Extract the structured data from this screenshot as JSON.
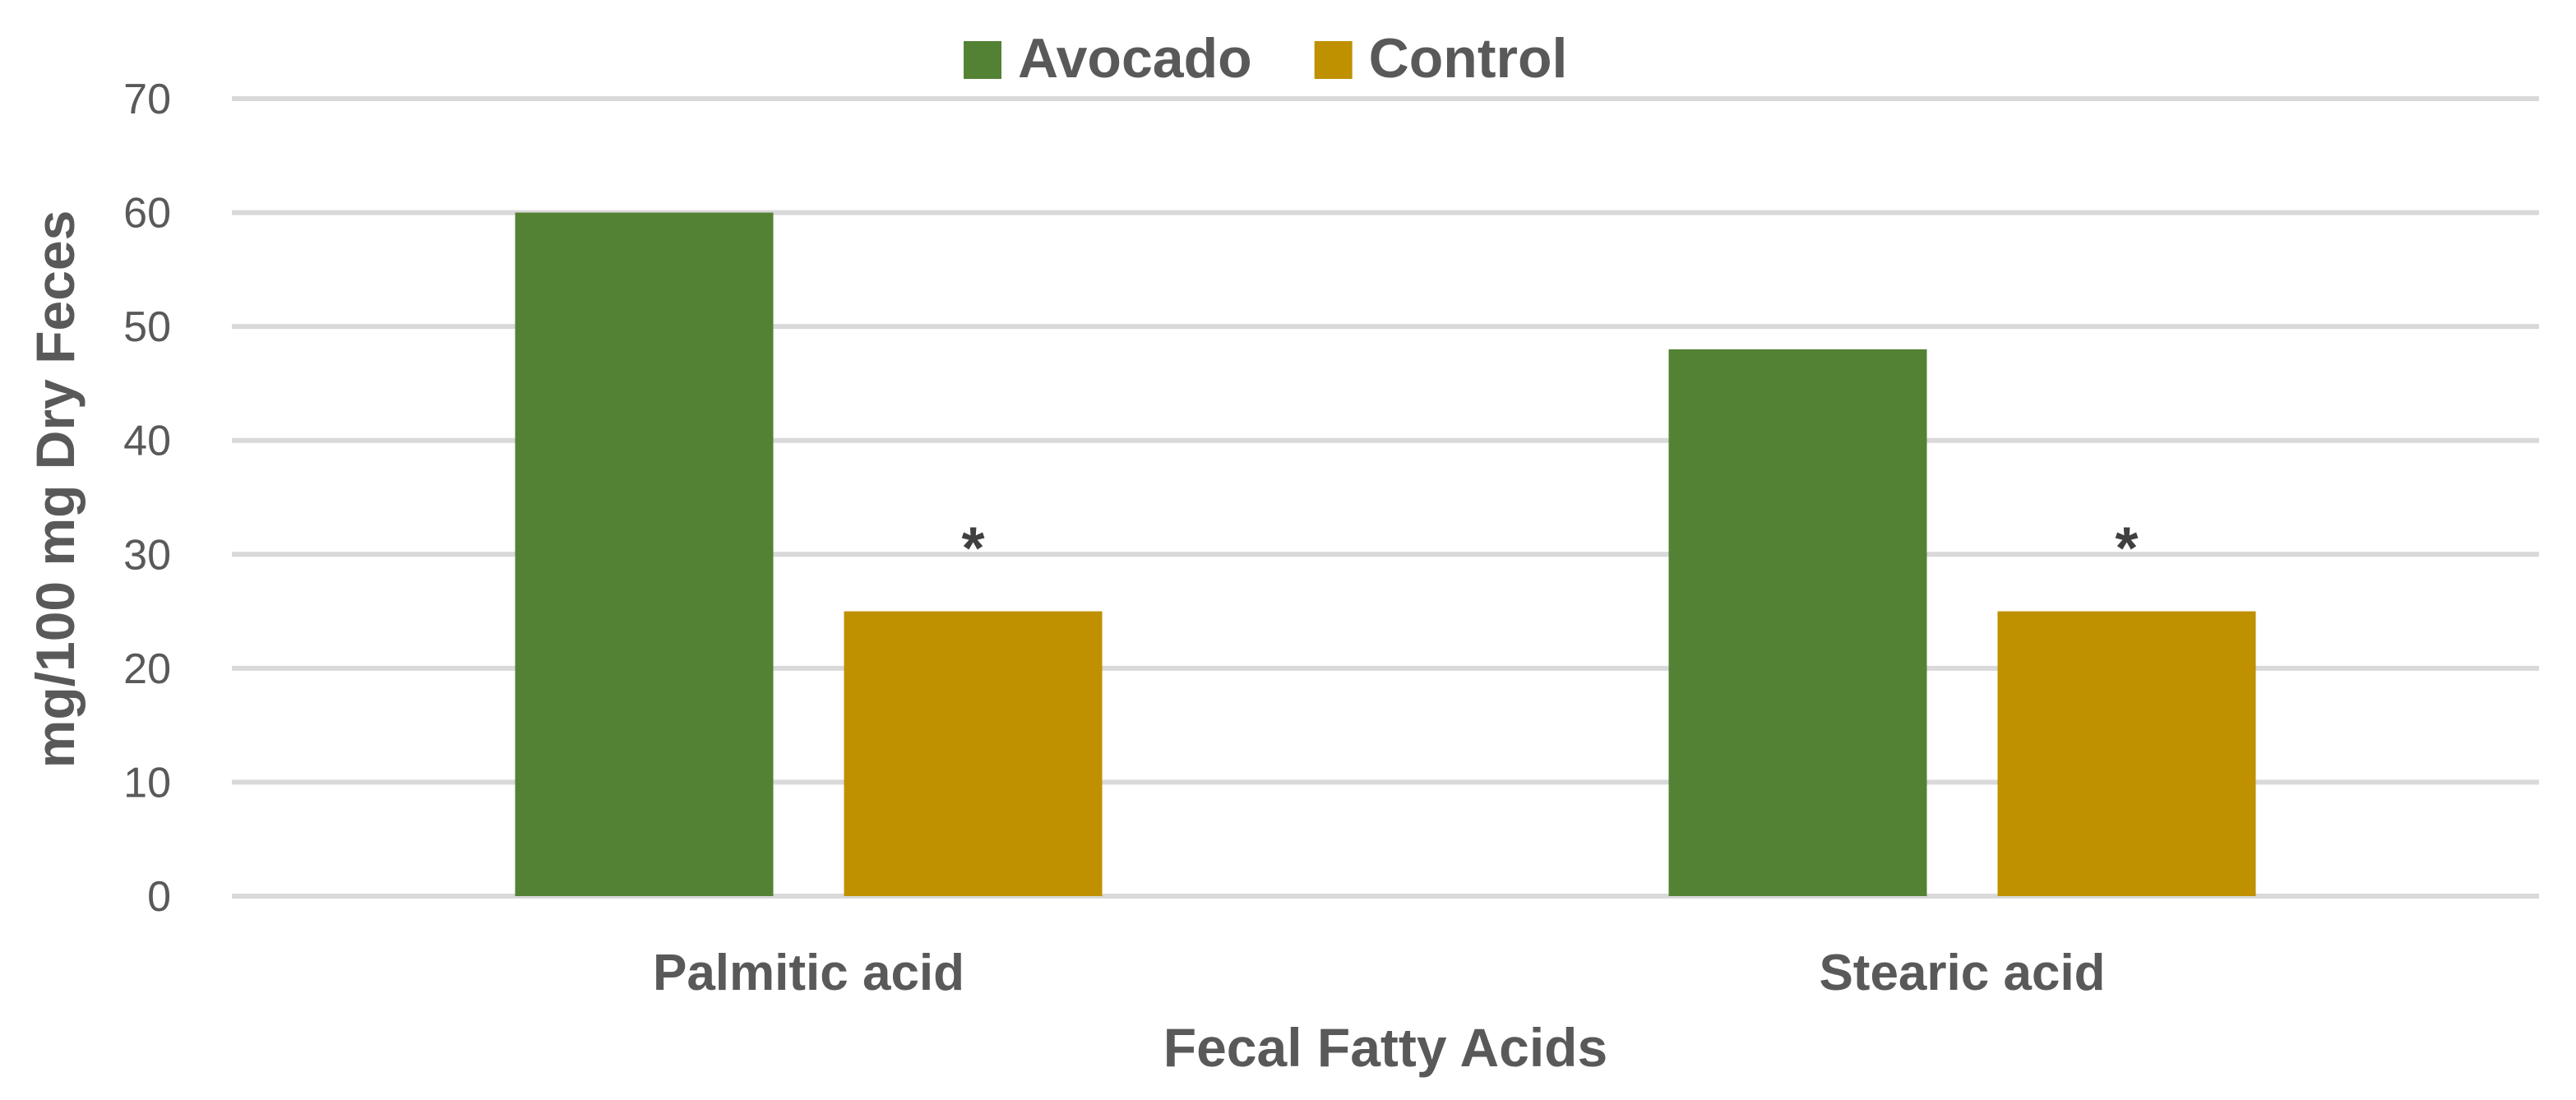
{
  "chart_data": {
    "type": "bar",
    "title": "",
    "xlabel": "Fecal Fatty Acids",
    "ylabel": "mg/100 mg Dry Feces",
    "categories": [
      "Palmitic acid",
      "Stearic acid"
    ],
    "series": [
      {
        "name": "Avocado",
        "color": "#548235",
        "values": [
          60,
          48
        ]
      },
      {
        "name": "Control",
        "color": "#BF9000",
        "values": [
          25,
          25
        ]
      }
    ],
    "annotations": [
      {
        "category": "Palmitic acid",
        "series": "Control",
        "text": "*"
      },
      {
        "category": "Stearic acid",
        "series": "Control",
        "text": "*"
      }
    ],
    "ylim": [
      0,
      70
    ],
    "yticks": [
      0,
      10,
      20,
      30,
      40,
      50,
      60,
      70
    ],
    "grid": true,
    "legend": "top-center"
  }
}
